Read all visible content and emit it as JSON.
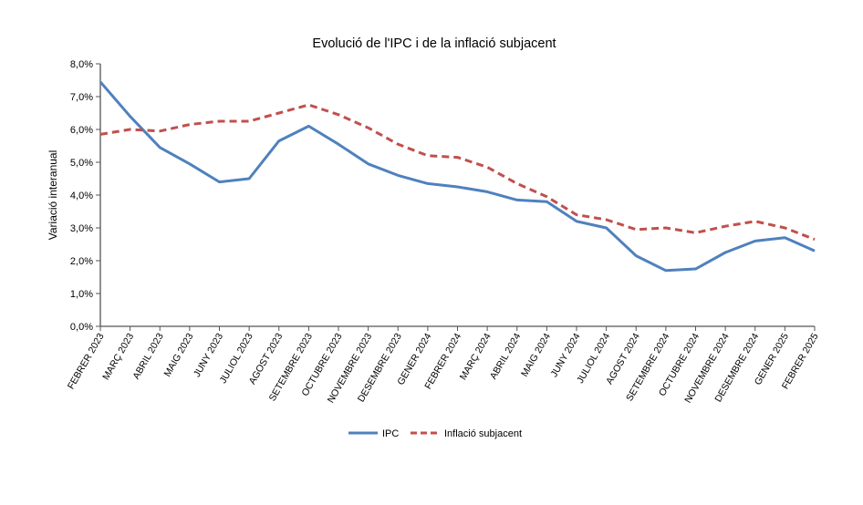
{
  "chart_data": {
    "type": "line",
    "title": "Evolució de l'IPC i de la inflació subjacent",
    "xlabel": "",
    "ylabel": "Variació interanual",
    "ylim": [
      0,
      8
    ],
    "yticks": [
      "0,0%",
      "1,0%",
      "2,0%",
      "3,0%",
      "4,0%",
      "5,0%",
      "6,0%",
      "7,0%",
      "8,0%"
    ],
    "grid": false,
    "legend_position": "bottom",
    "categories": [
      "FEBRER 2023",
      "MARÇ 2023",
      "ABRIL 2023",
      "MAIG 2023",
      "JUNY 2023",
      "JULIOL 2023",
      "AGOST 2023",
      "SETEMBRE 2023",
      "OCTUBRE 2023",
      "NOVEMBRE 2023",
      "DESEMBRE 2023",
      "GENER 2024",
      "FEBRER 2024",
      "MARÇ 2024",
      "ABRIL 2024",
      "MAIG 2024",
      "JUNY 2024",
      "JULIOL 2024",
      "AGOST 2024",
      "SETEMBRE 2024",
      "OCTUBRE 2024",
      "NOVEMBRE 2024",
      "DESEMBRE 2024",
      "GENER 2025",
      "FEBRER 2025"
    ],
    "series": [
      {
        "name": "IPC",
        "color": "#4F81BD",
        "style": "solid",
        "values": [
          7.45,
          6.4,
          5.45,
          4.95,
          4.4,
          4.5,
          5.65,
          6.1,
          5.55,
          4.95,
          4.6,
          4.35,
          4.25,
          4.1,
          3.85,
          3.8,
          3.2,
          3.0,
          2.15,
          1.7,
          1.75,
          2.25,
          2.6,
          2.7,
          2.3
        ]
      },
      {
        "name": "Inflació subjacent",
        "color": "#C0504D",
        "style": "dashed",
        "values": [
          5.85,
          6.0,
          5.95,
          6.15,
          6.25,
          6.25,
          6.5,
          6.75,
          6.45,
          6.05,
          5.55,
          5.2,
          5.15,
          4.85,
          4.35,
          3.95,
          3.4,
          3.25,
          2.95,
          3.0,
          2.85,
          3.05,
          3.2,
          3.0,
          2.65
        ]
      }
    ]
  }
}
